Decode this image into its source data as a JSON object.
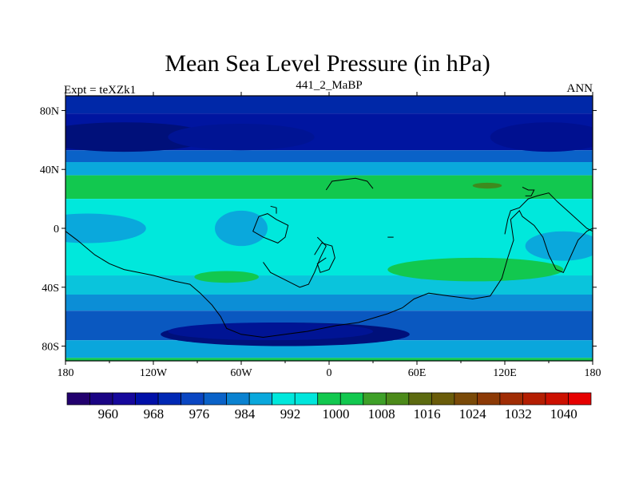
{
  "title": "Mean Sea Level Pressure (in hPa)",
  "left_subtitle": "Expt = teXZk1",
  "center_subtitle": "441_2_MaBP",
  "right_subtitle": "ANN",
  "map": {
    "projection": "cylindrical-equidistant",
    "lon_range": [
      -180,
      180
    ],
    "lat_range": [
      -90,
      90
    ],
    "lon_ticks": [
      {
        "value": -180,
        "label": "180"
      },
      {
        "value": -120,
        "label": "120W"
      },
      {
        "value": -60,
        "label": "60W"
      },
      {
        "value": 0,
        "label": "0"
      },
      {
        "value": 60,
        "label": "60E"
      },
      {
        "value": 120,
        "label": "120E"
      },
      {
        "value": 180,
        "label": "180"
      }
    ],
    "lat_ticks": [
      {
        "value": 80,
        "label": "80N"
      },
      {
        "value": 40,
        "label": "40N"
      },
      {
        "value": 0,
        "label": "0"
      },
      {
        "value": -40,
        "label": "40S"
      },
      {
        "value": -80,
        "label": "80S"
      }
    ],
    "field_bands": [
      {
        "name": "arctic-polar-band",
        "lat": [
          78,
          90
        ],
        "lon": [
          -180,
          180
        ],
        "color": "#0028a8"
      },
      {
        "name": "north-subpolar-low-band",
        "lat": [
          53,
          78
        ],
        "lon": [
          -180,
          180
        ],
        "color": "#0015a0"
      },
      {
        "name": "north-midlat-band-upper",
        "lat": [
          45,
          53
        ],
        "lon": [
          -180,
          180
        ],
        "color": "#0a62c8"
      },
      {
        "name": "north-midlat-band-lower",
        "lat": [
          36,
          45
        ],
        "lon": [
          -180,
          180
        ],
        "color": "#0aa8dc"
      },
      {
        "name": "north-subtropical-high-band",
        "lat": [
          20,
          36
        ],
        "lon": [
          -180,
          180
        ],
        "color": "#12c84f"
      },
      {
        "name": "tropical-band",
        "lat": [
          -32,
          20
        ],
        "lon": [
          -180,
          180
        ],
        "color": "#00e8dc"
      },
      {
        "name": "south-midlat-band-upper",
        "lat": [
          -32,
          -45
        ],
        "lon": [
          -180,
          180
        ],
        "color": "#0ac4dc"
      },
      {
        "name": "south-midlat-band-middle",
        "lat": [
          -45,
          -56
        ],
        "lon": [
          -180,
          180
        ],
        "color": "#0c8ed6"
      },
      {
        "name": "south-subpolar-band",
        "lat": [
          -56,
          -76
        ],
        "lon": [
          -180,
          180
        ],
        "color": "#0a58c0"
      },
      {
        "name": "antarctic-coast-band",
        "lat": [
          -76,
          -88
        ],
        "lon": [
          -180,
          180
        ],
        "color": "#0aa6dc"
      },
      {
        "name": "south-pole-band",
        "lat": [
          -88,
          -90
        ],
        "lon": [
          -180,
          180
        ],
        "color": "#12c84f"
      }
    ],
    "field_blobs": [
      {
        "name": "north-pacific-low-west",
        "center": [
          -140,
          62
        ],
        "radius": [
          60,
          10
        ],
        "color": "#00107a"
      },
      {
        "name": "north-pacific-low-east",
        "center": [
          -60,
          62
        ],
        "radius": [
          50,
          9
        ],
        "color": "#001494"
      },
      {
        "name": "north-low-asia",
        "center": [
          150,
          62
        ],
        "radius": [
          40,
          10
        ],
        "color": "#001090"
      },
      {
        "name": "tropical-low-east-pacific",
        "center": [
          -165,
          0
        ],
        "radius": [
          40,
          10
        ],
        "color": "#0aa8dc"
      },
      {
        "name": "tropical-low-south-america",
        "center": [
          -60,
          0
        ],
        "radius": [
          18,
          12
        ],
        "color": "#0aa8dc"
      },
      {
        "name": "tropical-low-east-indonesia",
        "center": [
          160,
          -12
        ],
        "radius": [
          26,
          10
        ],
        "color": "#0aa8dc"
      },
      {
        "name": "south-atlantic-high",
        "center": [
          -70,
          -33
        ],
        "radius": [
          22,
          4
        ],
        "color": "#12c84f"
      },
      {
        "name": "south-indian-high",
        "center": [
          100,
          -28
        ],
        "radius": [
          60,
          8
        ],
        "color": "#12c84f"
      },
      {
        "name": "asia-high-spot",
        "center": [
          108,
          29
        ],
        "radius": [
          10,
          2
        ],
        "color": "#3e8a1e"
      },
      {
        "name": "south-polar-low",
        "center": [
          -30,
          -72
        ],
        "radius": [
          85,
          8
        ],
        "color": "#00107a"
      },
      {
        "name": "antarctic-low-inner",
        "center": [
          -40,
          -70
        ],
        "radius": [
          70,
          6
        ],
        "color": "#001494"
      }
    ],
    "coastlines": [
      {
        "name": "continent-americas",
        "points": [
          [
            -180,
            -2
          ],
          [
            -172,
            -8
          ],
          [
            -160,
            -18
          ],
          [
            -150,
            -24
          ],
          [
            -140,
            -28
          ],
          [
            -120,
            -32
          ],
          [
            -105,
            -36
          ],
          [
            -95,
            -38
          ],
          [
            -88,
            -44
          ],
          [
            -80,
            -52
          ],
          [
            -74,
            -60
          ],
          [
            -70,
            -68
          ],
          [
            -60,
            -72
          ],
          [
            -45,
            -74
          ],
          [
            -30,
            -72
          ],
          [
            -15,
            -70
          ],
          [
            5,
            -66
          ],
          [
            20,
            -64
          ],
          [
            40,
            -58
          ],
          [
            50,
            -54
          ],
          [
            58,
            -48
          ],
          [
            68,
            -44
          ],
          [
            82,
            -46
          ],
          [
            98,
            -48
          ],
          [
            110,
            -46
          ],
          [
            118,
            -34
          ],
          [
            122,
            -20
          ],
          [
            126,
            -8
          ],
          [
            124,
            6
          ],
          [
            130,
            12
          ],
          [
            132,
            8
          ],
          [
            140,
            2
          ],
          [
            146,
            -6
          ],
          [
            150,
            -18
          ],
          [
            155,
            -28
          ],
          [
            160,
            -30
          ],
          [
            170,
            -8
          ],
          [
            176,
            -2
          ],
          [
            180,
            0
          ]
        ]
      },
      {
        "name": "continent-north-cluster",
        "points": [
          [
            -2,
            26
          ],
          [
            2,
            32
          ],
          [
            10,
            33
          ],
          [
            18,
            34
          ],
          [
            26,
            32
          ],
          [
            30,
            27
          ]
        ]
      },
      {
        "name": "continent-west-block",
        "points": [
          [
            -48,
            8
          ],
          [
            -52,
            -2
          ],
          [
            -45,
            -6
          ],
          [
            -35,
            -10
          ],
          [
            -30,
            -6
          ],
          [
            -28,
            2
          ],
          [
            -36,
            6
          ],
          [
            -42,
            10
          ],
          [
            -48,
            8
          ]
        ]
      },
      {
        "name": "continent-central-south",
        "points": [
          [
            -45,
            -23
          ],
          [
            -40,
            -30
          ],
          [
            -28,
            -36
          ],
          [
            -20,
            -40
          ],
          [
            -14,
            -38
          ],
          [
            -10,
            -30
          ],
          [
            -6,
            -20
          ],
          [
            -2,
            -12
          ],
          [
            -8,
            -6
          ]
        ]
      },
      {
        "name": "continent-central-ring",
        "points": [
          [
            -10,
            -18
          ],
          [
            -5,
            -10
          ],
          [
            2,
            -12
          ],
          [
            4,
            -20
          ],
          [
            0,
            -28
          ],
          [
            -6,
            -30
          ],
          [
            -8,
            -24
          ],
          [
            -2,
            -20
          ]
        ]
      },
      {
        "name": "continent-east-asia",
        "points": [
          [
            120,
            -4
          ],
          [
            122,
            6
          ],
          [
            124,
            12
          ],
          [
            130,
            14
          ],
          [
            136,
            20
          ],
          [
            142,
            22
          ],
          [
            150,
            24
          ],
          [
            156,
            18
          ],
          [
            165,
            10
          ],
          [
            176,
            0
          ],
          [
            180,
            -2
          ]
        ]
      },
      {
        "name": "continent-far-east-island",
        "points": [
          [
            132,
            28
          ],
          [
            136,
            26
          ],
          [
            140,
            26
          ],
          [
            138,
            22
          ],
          [
            134,
            22
          ]
        ]
      },
      {
        "name": "island-north-a",
        "points": [
          [
            -40,
            15
          ],
          [
            -36,
            14
          ],
          [
            -36,
            10
          ]
        ]
      },
      {
        "name": "island-mid-b",
        "points": [
          [
            40,
            -6
          ],
          [
            44,
            -6
          ]
        ]
      }
    ]
  },
  "colorbar": {
    "colors": [
      "#22006e",
      "#1a0484",
      "#16089c",
      "#0010a8",
      "#0028b4",
      "#0a46c2",
      "#0a62c8",
      "#0a82d0",
      "#0aa8dc",
      "#00e8dc",
      "#00e6dc",
      "#12c84f",
      "#12c84f",
      "#3ea028",
      "#4c8a1a",
      "#5c6a10",
      "#6a5c0a",
      "#7a4a08",
      "#8c3a06",
      "#a02c04",
      "#b41e02",
      "#cc1000",
      "#e60000"
    ],
    "labels": [
      "960",
      "968",
      "976",
      "984",
      "992",
      "1000",
      "1008",
      "1016",
      "1024",
      "1032",
      "1040"
    ]
  }
}
